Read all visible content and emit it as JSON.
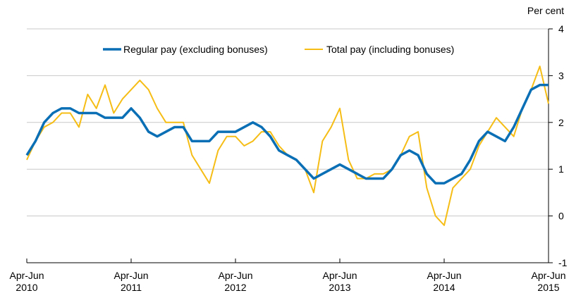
{
  "chart_data": {
    "type": "line",
    "unit_label": "Per cent",
    "x_ticks": [
      {
        "index": 0,
        "line1": "Apr-Jun",
        "line2": "2010"
      },
      {
        "index": 12,
        "line1": "Apr-Jun",
        "line2": "2011"
      },
      {
        "index": 24,
        "line1": "Apr-Jun",
        "line2": "2012"
      },
      {
        "index": 36,
        "line1": "Apr-Jun",
        "line2": "2013"
      },
      {
        "index": 48,
        "line1": "Apr-Jun",
        "line2": "2014"
      },
      {
        "index": 60,
        "line1": "Apr-Jun",
        "line2": "2015"
      }
    ],
    "ylim": [
      -1,
      4
    ],
    "y_ticks": [
      "-1",
      "0",
      "1",
      "2",
      "3",
      "4"
    ],
    "y_axis_side": "right",
    "grid": "horizontal",
    "legend_placement": "top",
    "series": [
      {
        "name": "Regular pay (excluding bonuses)",
        "color": "#0b6fb5",
        "values": [
          1.3,
          1.6,
          2.0,
          2.2,
          2.3,
          2.3,
          2.2,
          2.2,
          2.2,
          2.1,
          2.1,
          2.1,
          2.3,
          2.1,
          1.8,
          1.7,
          1.8,
          1.9,
          1.9,
          1.6,
          1.6,
          1.6,
          1.8,
          1.8,
          1.8,
          1.9,
          2.0,
          1.9,
          1.7,
          1.4,
          1.3,
          1.2,
          1.0,
          0.8,
          0.9,
          1.0,
          1.1,
          1.0,
          0.9,
          0.8,
          0.8,
          0.8,
          1.0,
          1.3,
          1.4,
          1.3,
          0.9,
          0.7,
          0.7,
          0.8,
          0.9,
          1.2,
          1.6,
          1.8,
          1.7,
          1.6,
          1.9,
          2.3,
          2.7,
          2.8,
          2.8
        ]
      },
      {
        "name": "Total pay (including bonuses)",
        "color": "#f5bd15",
        "values": [
          1.2,
          1.6,
          1.9,
          2.0,
          2.2,
          2.2,
          1.9,
          2.6,
          2.3,
          2.8,
          2.2,
          2.5,
          2.7,
          2.9,
          2.7,
          2.3,
          2.0,
          2.0,
          2.0,
          1.3,
          1.0,
          0.7,
          1.4,
          1.7,
          1.7,
          1.5,
          1.6,
          1.8,
          1.8,
          1.5,
          1.3,
          1.2,
          1.0,
          0.5,
          1.6,
          1.9,
          2.3,
          1.2,
          0.8,
          0.8,
          0.9,
          0.9,
          1.0,
          1.3,
          1.7,
          1.8,
          0.6,
          0.0,
          -0.2,
          0.6,
          0.8,
          1.0,
          1.5,
          1.8,
          2.1,
          1.9,
          1.7,
          2.3,
          2.7,
          3.2,
          2.4
        ]
      }
    ]
  }
}
